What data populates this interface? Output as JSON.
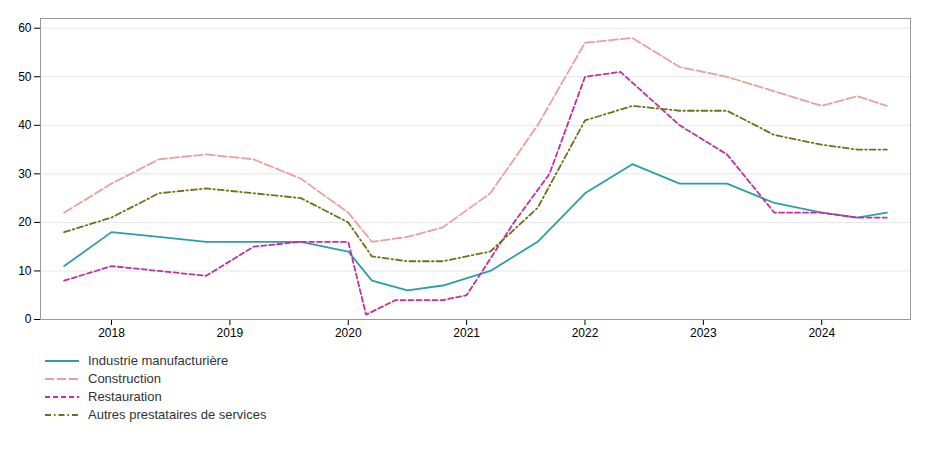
{
  "chart_data": {
    "type": "line",
    "xlim": [
      2017.4,
      2024.75
    ],
    "xticks": [
      2018,
      2019,
      2020,
      2021,
      2022,
      2023,
      2024
    ],
    "ylim": [
      0,
      62
    ],
    "yticks": [
      0,
      10,
      20,
      30,
      40,
      50,
      60
    ],
    "grid": true,
    "legend": "bottom",
    "series": [
      {
        "name": "Industrie manufacturière",
        "color": "#2b9fa8",
        "line_style": "solid",
        "x": [
          2017.6,
          2018.0,
          2018.4,
          2018.8,
          2019.2,
          2019.6,
          2020.0,
          2020.2,
          2020.5,
          2020.8,
          2021.2,
          2021.6,
          2022.0,
          2022.4,
          2022.8,
          2023.2,
          2023.6,
          2024.0,
          2024.3,
          2024.55
        ],
        "values": [
          11,
          18,
          17,
          16,
          16,
          16,
          14,
          8,
          6,
          7,
          10,
          16,
          26,
          32,
          28,
          28,
          24,
          22,
          21,
          22
        ]
      },
      {
        "name": "Construction",
        "color": "#e8a0a0",
        "line_style": "longdash",
        "x": [
          2017.6,
          2018.0,
          2018.4,
          2018.8,
          2019.2,
          2019.6,
          2020.0,
          2020.2,
          2020.5,
          2020.8,
          2021.2,
          2021.6,
          2022.0,
          2022.4,
          2022.8,
          2023.2,
          2023.6,
          2024.0,
          2024.3,
          2024.55
        ],
        "values": [
          22,
          28,
          33,
          34,
          33,
          29,
          22,
          16,
          17,
          19,
          26,
          40,
          57,
          58,
          52,
          50,
          47,
          44,
          46,
          44
        ]
      },
      {
        "name": "Restauration",
        "color": "#c030a0",
        "line_style": "dashed",
        "x": [
          2017.6,
          2018.0,
          2018.4,
          2018.8,
          2019.2,
          2019.6,
          2020.0,
          2020.15,
          2020.4,
          2020.8,
          2021.0,
          2021.4,
          2021.7,
          2022.0,
          2022.3,
          2022.8,
          2023.2,
          2023.6,
          2024.0,
          2024.3,
          2024.55
        ],
        "values": [
          8,
          11,
          10,
          9,
          15,
          16,
          16,
          1,
          4,
          4,
          5,
          20,
          30,
          50,
          51,
          40,
          34,
          22,
          22,
          21,
          21
        ]
      },
      {
        "name": "Autres prestataires de services",
        "color": "#707018",
        "line_style": "dashdot",
        "x": [
          2017.6,
          2018.0,
          2018.4,
          2018.8,
          2019.2,
          2019.6,
          2020.0,
          2020.2,
          2020.5,
          2020.8,
          2021.2,
          2021.6,
          2022.0,
          2022.4,
          2022.8,
          2023.2,
          2023.6,
          2024.0,
          2024.3,
          2024.55
        ],
        "values": [
          18,
          21,
          26,
          27,
          26,
          25,
          20,
          13,
          12,
          12,
          14,
          23,
          41,
          44,
          43,
          43,
          38,
          36,
          35,
          35
        ]
      }
    ]
  }
}
